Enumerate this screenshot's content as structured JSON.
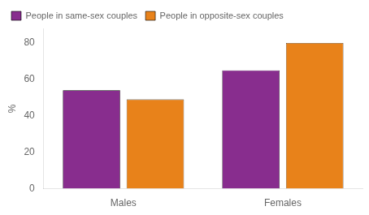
{
  "chart_data": {
    "type": "bar",
    "categories": [
      "Males",
      "Females"
    ],
    "series": [
      {
        "name": "People in same-sex couples",
        "color": "#882D8E",
        "values": [
          54,
          65
        ]
      },
      {
        "name": "People in opposite-sex couples",
        "color": "#E8821A",
        "values": [
          49,
          80
        ]
      }
    ],
    "ylabel": "%",
    "ylim": [
      0,
      88
    ],
    "yticks": [
      0,
      20,
      40,
      60,
      80
    ],
    "grid": false,
    "legend": "upper left"
  }
}
